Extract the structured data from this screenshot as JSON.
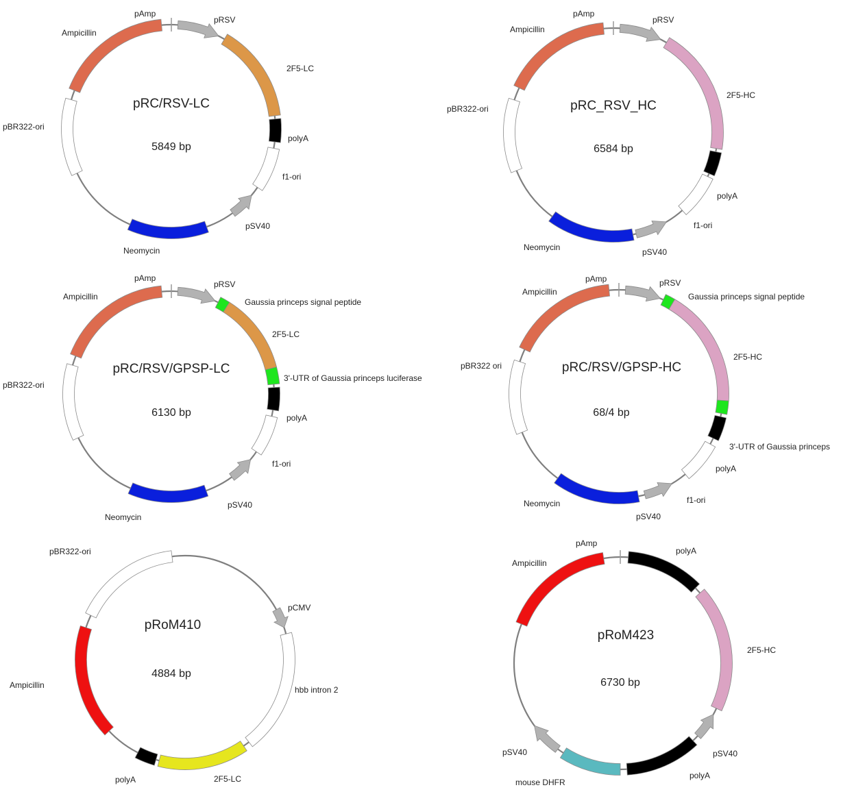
{
  "colors": {
    "backbone": "#7f7f7f",
    "ampicillin_orange": "#dd6b4e",
    "ampicillin_red": "#ee1111",
    "promoter_gray": "#b2b2b2",
    "lc_orange": "#dc9748",
    "hc_pink": "#dba3c3",
    "polyA_black": "#000000",
    "ori_white": "#ffffff",
    "neomycin_blue": "#0a1fdc",
    "signal_green": "#1ee61e",
    "lc_yellow": "#e6e61e",
    "dhfr_teal": "#5ab9bf"
  },
  "plasmids": [
    {
      "id": "prc-rsv-lc",
      "name": "pRC/RSV-LC",
      "size": "5849 bp",
      "features": [
        {
          "label": "pAmp",
          "kind": "tick",
          "start": 0.0,
          "end": 0.0
        },
        {
          "label": "pRSV",
          "kind": "arrow",
          "start": 0.01,
          "end": 0.075,
          "color": "promoter_gray"
        },
        {
          "label": "2F5-LC",
          "kind": "block",
          "start": 0.085,
          "end": 0.23,
          "color": "lc_orange"
        },
        {
          "label": "polyA",
          "kind": "block",
          "start": 0.235,
          "end": 0.27,
          "color": "polyA_black"
        },
        {
          "label": "f1-ori",
          "kind": "block",
          "start": 0.28,
          "end": 0.345,
          "color": "ori_white"
        },
        {
          "label": "pSV40",
          "kind": "arrow-ccw",
          "start": 0.36,
          "end": 0.4,
          "color": "promoter_gray"
        },
        {
          "label": "Neomycin",
          "kind": "block",
          "start": 0.445,
          "end": 0.565,
          "color": "neomycin_blue"
        },
        {
          "label": "pBR322-ori",
          "kind": "block",
          "start": 0.68,
          "end": 0.795,
          "color": "ori_white"
        },
        {
          "label": "Ampicillin",
          "kind": "block",
          "start": 0.81,
          "end": 0.985,
          "color": "ampicillin_orange"
        }
      ]
    },
    {
      "id": "prc-rsv-hc",
      "name": "pRC_RSV_HC",
      "size": "6584 bp",
      "features": [
        {
          "label": "pAmp",
          "kind": "tick",
          "start": 0.0,
          "end": 0.0
        },
        {
          "label": "pRSV",
          "kind": "arrow",
          "start": 0.01,
          "end": 0.075,
          "color": "promoter_gray"
        },
        {
          "label": "2F5-HC",
          "kind": "block",
          "start": 0.085,
          "end": 0.275,
          "color": "hc_pink"
        },
        {
          "label": "polyA",
          "kind": "block",
          "start": 0.28,
          "end": 0.315,
          "color": "polyA_black"
        },
        {
          "label": "f1-ori",
          "kind": "block",
          "start": 0.32,
          "end": 0.385,
          "color": "ori_white"
        },
        {
          "label": "pSV40",
          "kind": "arrow-ccw",
          "start": 0.415,
          "end": 0.465,
          "color": "promoter_gray"
        },
        {
          "label": "Neomycin",
          "kind": "block",
          "start": 0.47,
          "end": 0.6,
          "color": "neomycin_blue"
        },
        {
          "label": "pBR322-ori",
          "kind": "block",
          "start": 0.69,
          "end": 0.8,
          "color": "ori_white"
        },
        {
          "label": "Ampicillin",
          "kind": "block",
          "start": 0.82,
          "end": 0.985,
          "color": "ampicillin_orange"
        }
      ]
    },
    {
      "id": "prc-rsv-gpsp-lc",
      "name": "pRC/RSV/GPSP-LC",
      "size": "6130 bp",
      "features": [
        {
          "label": "pAmp",
          "kind": "tick",
          "start": 0.0,
          "end": 0.0
        },
        {
          "label": "pRSV",
          "kind": "arrow",
          "start": 0.01,
          "end": 0.07,
          "color": "promoter_gray"
        },
        {
          "label": "Gaussia princeps signal peptide",
          "kind": "block",
          "start": 0.075,
          "end": 0.09,
          "color": "signal_green"
        },
        {
          "label": "2F5-LC",
          "kind": "block",
          "start": 0.09,
          "end": 0.21,
          "color": "lc_orange"
        },
        {
          "label": "3'-UTR of Gaussia princeps luciferase",
          "kind": "block",
          "start": 0.21,
          "end": 0.235,
          "color": "signal_green"
        },
        {
          "label": "polyA",
          "kind": "block",
          "start": 0.24,
          "end": 0.275,
          "color": "polyA_black"
        },
        {
          "label": "f1-ori",
          "kind": "block",
          "start": 0.285,
          "end": 0.345,
          "color": "ori_white"
        },
        {
          "label": "pSV40",
          "kind": "arrow-ccw",
          "start": 0.36,
          "end": 0.4,
          "color": "promoter_gray"
        },
        {
          "label": "Neomycin",
          "kind": "block",
          "start": 0.445,
          "end": 0.565,
          "color": "neomycin_blue"
        },
        {
          "label": "pBR322-ori",
          "kind": "block",
          "start": 0.68,
          "end": 0.795,
          "color": "ori_white"
        },
        {
          "label": "Ampicillin",
          "kind": "block",
          "start": 0.81,
          "end": 0.985,
          "color": "ampicillin_orange"
        }
      ]
    },
    {
      "id": "prc-rsv-gpsp-hc",
      "name": "pRC/RSV/GPSP-HC",
      "size": "68/4 bp",
      "features": [
        {
          "label": "pAmp",
          "kind": "tick",
          "start": 0.0,
          "end": 0.0
        },
        {
          "label": "pRSV",
          "kind": "arrow",
          "start": 0.01,
          "end": 0.065,
          "color": "promoter_gray"
        },
        {
          "label": "Gaussia princeps signal peptide",
          "kind": "block",
          "start": 0.07,
          "end": 0.085,
          "color": "signal_green"
        },
        {
          "label": "2F5-HC",
          "kind": "block",
          "start": 0.085,
          "end": 0.26,
          "color": "hc_pink"
        },
        {
          "label": "3'-UTR of Gaussia princeps",
          "kind": "block",
          "start": 0.26,
          "end": 0.28,
          "color": "signal_green"
        },
        {
          "label": "polyA",
          "kind": "block",
          "start": 0.285,
          "end": 0.32,
          "color": "polyA_black"
        },
        {
          "label": "f1-ori",
          "kind": "block",
          "start": 0.33,
          "end": 0.39,
          "color": "ori_white"
        },
        {
          "label": "pSV40",
          "kind": "arrow-ccw",
          "start": 0.415,
          "end": 0.46,
          "color": "promoter_gray"
        },
        {
          "label": "Neomycin",
          "kind": "block",
          "start": 0.47,
          "end": 0.6,
          "color": "neomycin_blue"
        },
        {
          "label": "pBR322 ori",
          "kind": "block",
          "start": 0.69,
          "end": 0.8,
          "color": "ori_white"
        },
        {
          "label": "Ampicillin",
          "kind": "block",
          "start": 0.82,
          "end": 0.985,
          "color": "ampicillin_orange"
        }
      ]
    },
    {
      "id": "prom410",
      "name": "pRoM410",
      "size": "4884 bp",
      "features": [
        {
          "label": "pCMV",
          "kind": "arrow",
          "start": 0.17,
          "end": 0.2,
          "color": "promoter_gray"
        },
        {
          "label": "hbb intron 2",
          "kind": "block",
          "start": 0.21,
          "end": 0.395,
          "color": "ori_white"
        },
        {
          "label": "2F5-LC",
          "kind": "block",
          "start": 0.405,
          "end": 0.54,
          "color": "lc_yellow"
        },
        {
          "label": "polyA",
          "kind": "block",
          "start": 0.545,
          "end": 0.575,
          "color": "polyA_black"
        },
        {
          "label": "Ampicillin",
          "kind": "block",
          "start": 0.63,
          "end": 0.8,
          "color": "ampicillin_red"
        },
        {
          "label": "pBR322-ori",
          "kind": "block",
          "start": 0.82,
          "end": 0.98,
          "color": "ori_white"
        }
      ]
    },
    {
      "id": "prom423",
      "name": "pRoM423",
      "size": "6730 bp",
      "features": [
        {
          "label": "pAmp",
          "kind": "tick",
          "start": 0.0,
          "end": 0.0
        },
        {
          "label": "polyA",
          "kind": "block",
          "start": 0.012,
          "end": 0.125,
          "color": "polyA_black"
        },
        {
          "label": "2F5-HC",
          "kind": "block",
          "start": 0.135,
          "end": 0.32,
          "color": "hc_pink"
        },
        {
          "label": "pSV40",
          "kind": "arrow-ccw",
          "start": 0.33,
          "end": 0.37,
          "color": "promoter_gray"
        },
        {
          "label": "polyA",
          "kind": "block",
          "start": 0.38,
          "end": 0.49,
          "color": "polyA_black"
        },
        {
          "label": "mouse DHFR",
          "kind": "block",
          "start": 0.5,
          "end": 0.59,
          "color": "dhfr_teal"
        },
        {
          "label": "pSV40",
          "kind": "arrow",
          "start": 0.6,
          "end": 0.65,
          "color": "promoter_gray"
        },
        {
          "label": "Ampicillin",
          "kind": "block",
          "start": 0.81,
          "end": 0.975,
          "color": "ampicillin_red"
        }
      ]
    }
  ]
}
